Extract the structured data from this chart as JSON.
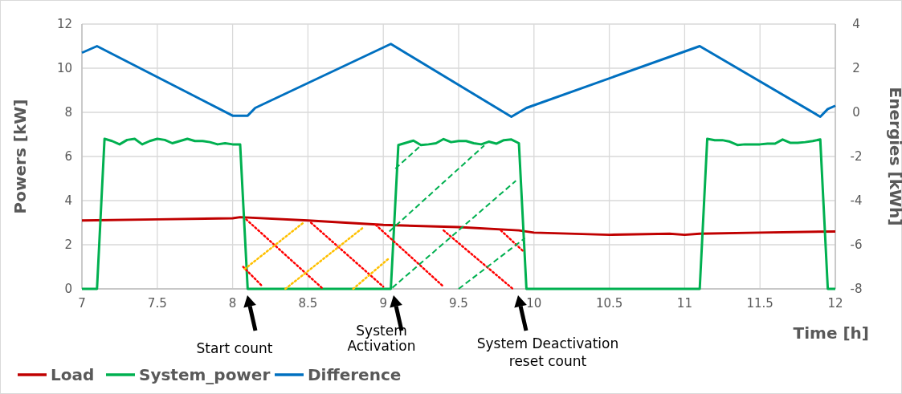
{
  "chart_data": {
    "type": "line",
    "xlabel": "Time [h]",
    "ylabel": "Powers [kW]",
    "y2label": "Energies [kWh]",
    "xlim": [
      7,
      12
    ],
    "xticks": [
      7,
      7.5,
      8,
      8.5,
      9,
      9.5,
      10,
      10.5,
      11,
      11.5,
      12
    ],
    "ylim": [
      0,
      12
    ],
    "yticks": [
      0,
      2,
      4,
      6,
      8,
      10,
      12
    ],
    "y2lim": [
      -8,
      4
    ],
    "y2ticks": [
      -8,
      -6,
      -4,
      -2,
      0,
      2,
      4
    ],
    "grid": true,
    "legend": "bottom",
    "marker": "none",
    "series": [
      {
        "name": "Load",
        "color": "#c00000",
        "x": [
          7,
          7.5,
          8,
          8.05,
          8.5,
          9,
          9.5,
          9.9,
          10,
          10.5,
          10.9,
          11,
          11.1,
          11.5,
          12
        ],
        "values": [
          3.1,
          3.15,
          3.2,
          3.25,
          3.1,
          2.9,
          2.8,
          2.65,
          2.55,
          2.45,
          2.5,
          2.45,
          2.5,
          2.55,
          2.6
        ]
      },
      {
        "name": "System_power",
        "color": "#00b050",
        "x": [
          7,
          7.1,
          7.15,
          7.2,
          7.25,
          7.3,
          7.35,
          7.4,
          7.45,
          7.5,
          7.55,
          7.6,
          7.65,
          7.7,
          7.75,
          7.8,
          7.85,
          7.9,
          7.95,
          8,
          8.05,
          8.1,
          9.05,
          9.1,
          9.15,
          9.2,
          9.25,
          9.3,
          9.35,
          9.4,
          9.45,
          9.5,
          9.55,
          9.6,
          9.65,
          9.7,
          9.75,
          9.8,
          9.85,
          9.9,
          9.95,
          11.1,
          11.15,
          11.2,
          11.25,
          11.3,
          11.35,
          11.4,
          11.45,
          11.5,
          11.55,
          11.6,
          11.65,
          11.7,
          11.75,
          11.8,
          11.85,
          11.9,
          11.95,
          12
        ],
        "values": [
          0,
          0,
          6.8,
          6.7,
          6.55,
          6.75,
          6.8,
          6.55,
          6.7,
          6.8,
          6.75,
          6.6,
          6.7,
          6.8,
          6.7,
          6.7,
          6.65,
          6.55,
          6.6,
          6.55,
          6.55,
          0,
          0,
          6.52,
          6.62,
          6.72,
          6.52,
          6.55,
          6.6,
          6.79,
          6.65,
          6.7,
          6.7,
          6.6,
          6.55,
          6.67,
          6.58,
          6.74,
          6.77,
          6.6,
          0,
          0,
          6.8,
          6.74,
          6.74,
          6.67,
          6.52,
          6.55,
          6.55,
          6.55,
          6.58,
          6.58,
          6.77,
          6.62,
          6.62,
          6.65,
          6.7,
          6.77,
          0,
          0
        ]
      },
      {
        "name": "Difference",
        "color": "#0070c0",
        "axis": "y2",
        "x": [
          7,
          7.1,
          8,
          8.1,
          8.15,
          9.05,
          9.85,
          9.95,
          11.1,
          11.9,
          11.95,
          12
        ],
        "values": [
          2.7,
          3,
          -0.15,
          -0.15,
          0.2,
          3.1,
          -0.2,
          0.2,
          3,
          -0.2,
          0.15,
          0.3
        ]
      },
      {
        "color": "#ff0000",
        "line_style": "dotted",
        "x": [
          8.09,
          8.6
        ],
        "values": [
          3.15,
          0
        ]
      },
      {
        "color": "#ff0000",
        "line_style": "dotted",
        "x": [
          8.07,
          8.2
        ],
        "values": [
          1,
          0.1
        ]
      },
      {
        "color": "#ff0000",
        "line_style": "dotted",
        "x": [
          8.52,
          9
        ],
        "values": [
          3,
          0.1
        ]
      },
      {
        "color": "#ff0000",
        "line_style": "dotted",
        "x": [
          8.95,
          9.4
        ],
        "values": [
          2.9,
          0.1
        ]
      },
      {
        "color": "#ff0000",
        "line_style": "dotted",
        "x": [
          9.4,
          9.86
        ],
        "values": [
          2.65,
          0
        ]
      },
      {
        "color": "#ff0000",
        "line_style": "dotted",
        "x": [
          9.78,
          9.93
        ],
        "values": [
          2.65,
          1.7
        ]
      },
      {
        "color": "#ffc000",
        "line_style": "dotted",
        "x": [
          8.08,
          8.47
        ],
        "values": [
          0.9,
          3
        ]
      },
      {
        "color": "#ffc000",
        "line_style": "dotted",
        "x": [
          8.35,
          8.87
        ],
        "values": [
          0,
          2.8
        ]
      },
      {
        "color": "#ffc000",
        "line_style": "dotted",
        "x": [
          8.8,
          9.04
        ],
        "values": [
          0,
          1.4
        ]
      },
      {
        "color": "#00b050",
        "line_style": "dashed",
        "x": [
          9.08,
          9.25
        ],
        "values": [
          5.45,
          6.5
        ]
      },
      {
        "color": "#00b050",
        "line_style": "dashed",
        "x": [
          9.04,
          9.67
        ],
        "values": [
          2.6,
          6.5
        ]
      },
      {
        "color": "#00b050",
        "line_style": "dashed",
        "x": [
          9.06,
          9.88
        ],
        "values": [
          0.05,
          4.9
        ]
      },
      {
        "color": "#00b050",
        "line_style": "dashed",
        "x": [
          9.5,
          9.94
        ],
        "values": [
          0,
          2.3
        ]
      }
    ],
    "annotations": [
      "Start count",
      "System\nActivation",
      "System Deactivation\nreset count"
    ]
  }
}
